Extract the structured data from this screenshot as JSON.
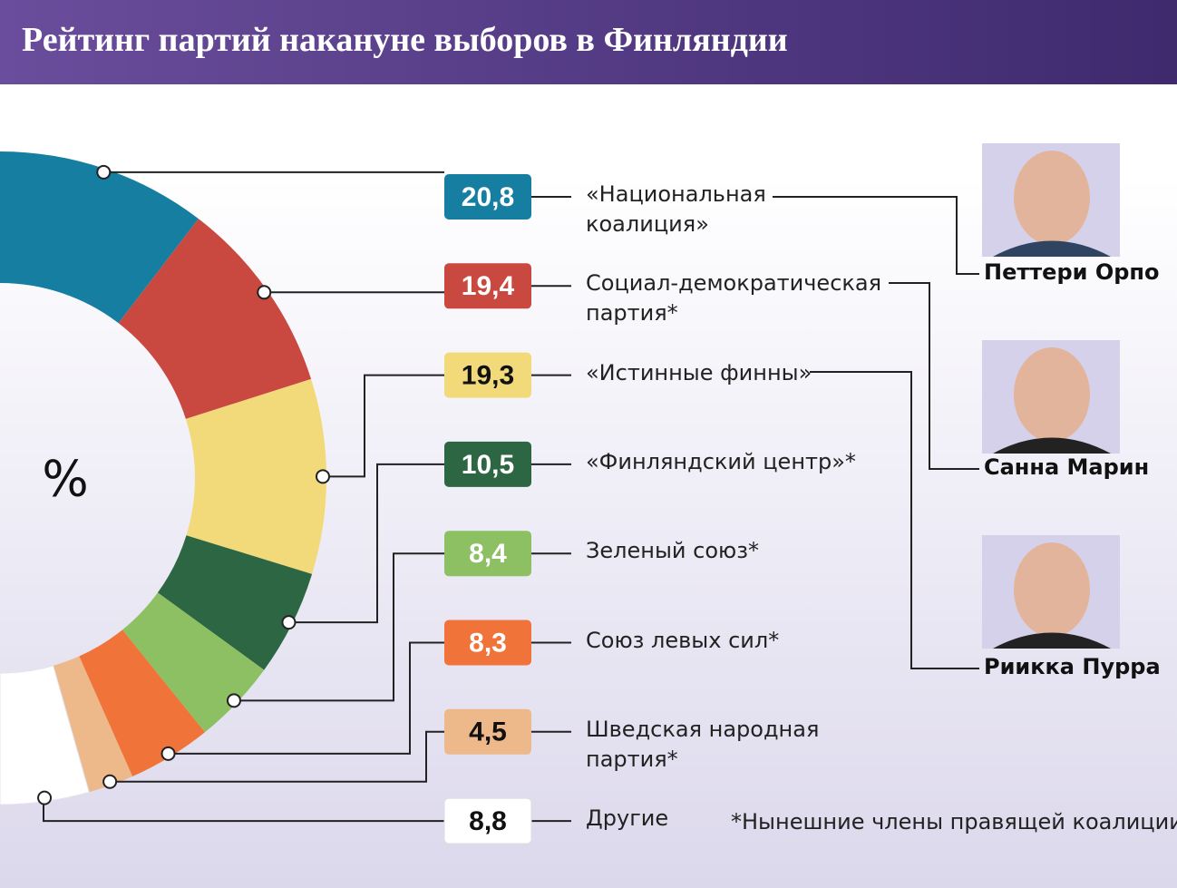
{
  "header": {
    "title": "Рейтинг партий накануне выборов в Финляндии"
  },
  "chart_data": {
    "type": "donut",
    "center_label": "%",
    "categories": [
      "«Национальная коалиция»",
      "Социал-демократическая партия*",
      "«Истинные финны»",
      "«Финляндский центр»*",
      "Зеленый союз*",
      "Союз левых сил*",
      "Шведская народная партия*",
      "Другие"
    ],
    "values": [
      20.8,
      19.4,
      19.3,
      10.5,
      8.4,
      8.3,
      4.5,
      8.8
    ],
    "value_labels": [
      "20,8",
      "19,4",
      "19,3",
      "10,5",
      "8,4",
      "8,3",
      "4,5",
      "8,8"
    ],
    "colors": [
      "#167ea0",
      "#c9483f",
      "#f2da7a",
      "#2d6642",
      "#8cc063",
      "#f0733a",
      "#edb98a",
      "#ffffff"
    ]
  },
  "leaders": [
    {
      "name": "Петтери Орпо"
    },
    {
      "name": "Санна Марин"
    },
    {
      "name": "Риикка Пурра"
    }
  ],
  "footnote": "*Нынешние члены правящей коалиции"
}
